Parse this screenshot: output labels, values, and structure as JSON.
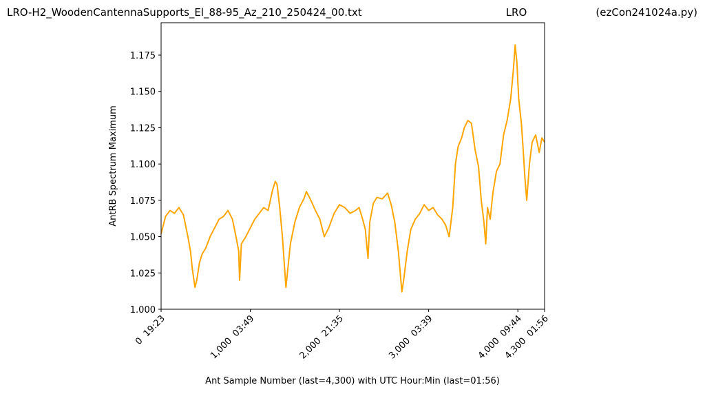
{
  "chart_data": {
    "type": "line",
    "title": [
      "LRO-H2_WoodenCantennaSupports_El_88-95_Az_210_250424_00.txt",
      "LRO",
      "(ezCon241024a.py)"
    ],
    "x_label": "Ant Sample Number (last=4,300) with UTC Hour:Min (last=01:56)",
    "y_label": "AntRB Spectrum Maximum",
    "x": [
      0,
      50,
      100,
      150,
      200,
      250,
      300,
      330,
      350,
      380,
      400,
      430,
      460,
      500,
      550,
      600,
      650,
      700,
      750,
      800,
      840,
      870,
      880,
      900,
      950,
      1000,
      1050,
      1100,
      1150,
      1200,
      1250,
      1280,
      1300,
      1330,
      1360,
      1400,
      1450,
      1500,
      1550,
      1600,
      1630,
      1680,
      1730,
      1780,
      1830,
      1880,
      1940,
      2000,
      2060,
      2120,
      2180,
      2220,
      2260,
      2290,
      2320,
      2340,
      2380,
      2420,
      2480,
      2540,
      2580,
      2620,
      2660,
      2700,
      2720,
      2760,
      2800,
      2850,
      2900,
      2950,
      3000,
      3050,
      3100,
      3150,
      3190,
      3230,
      3270,
      3300,
      3330,
      3370,
      3400,
      3440,
      3480,
      3520,
      3560,
      3590,
      3620,
      3640,
      3660,
      3690,
      3720,
      3760,
      3800,
      3840,
      3880,
      3920,
      3950,
      3970,
      3990,
      4010,
      4040,
      4060,
      4080,
      4100,
      4130,
      4160,
      4200,
      4240,
      4270,
      4300
    ],
    "y": [
      1.052,
      1.064,
      1.068,
      1.066,
      1.07,
      1.065,
      1.05,
      1.04,
      1.028,
      1.015,
      1.02,
      1.032,
      1.038,
      1.042,
      1.05,
      1.056,
      1.062,
      1.064,
      1.068,
      1.062,
      1.05,
      1.04,
      1.02,
      1.045,
      1.05,
      1.056,
      1.062,
      1.066,
      1.07,
      1.068,
      1.082,
      1.088,
      1.086,
      1.07,
      1.05,
      1.015,
      1.045,
      1.06,
      1.07,
      1.076,
      1.081,
      1.075,
      1.068,
      1.062,
      1.05,
      1.056,
      1.066,
      1.072,
      1.07,
      1.066,
      1.068,
      1.07,
      1.062,
      1.055,
      1.035,
      1.06,
      1.073,
      1.077,
      1.076,
      1.08,
      1.072,
      1.06,
      1.04,
      1.012,
      1.02,
      1.04,
      1.055,
      1.062,
      1.066,
      1.072,
      1.068,
      1.07,
      1.065,
      1.062,
      1.058,
      1.05,
      1.07,
      1.1,
      1.112,
      1.118,
      1.125,
      1.13,
      1.128,
      1.11,
      1.098,
      1.075,
      1.06,
      1.045,
      1.07,
      1.062,
      1.08,
      1.095,
      1.1,
      1.12,
      1.13,
      1.145,
      1.165,
      1.182,
      1.17,
      1.145,
      1.128,
      1.11,
      1.09,
      1.075,
      1.1,
      1.115,
      1.12,
      1.108,
      1.118,
      1.115
    ],
    "color": "#ffa500",
    "xlim": [
      0,
      4300
    ],
    "ylim": [
      1.0,
      1.1973
    ],
    "xticks": [
      {
        "value": 0,
        "label": "0  19:23"
      },
      {
        "value": 1000,
        "label": "1,000  03:49"
      },
      {
        "value": 2000,
        "label": "2,000  21:35"
      },
      {
        "value": 3000,
        "label": "3,000  03:39"
      },
      {
        "value": 4000,
        "label": "4,000  09:44"
      },
      {
        "value": 4300,
        "label": "4,300  01:56"
      }
    ],
    "yticks": [
      {
        "value": 1,
        "label": "1.000"
      },
      1.025,
      {
        "value": 1.05,
        "label": "1.050"
      },
      1.075,
      {
        "value": 1.1,
        "label": "1.100"
      },
      1.125,
      {
        "value": 1.15,
        "label": "1.150"
      },
      1.175
    ],
    "grid": false
  }
}
